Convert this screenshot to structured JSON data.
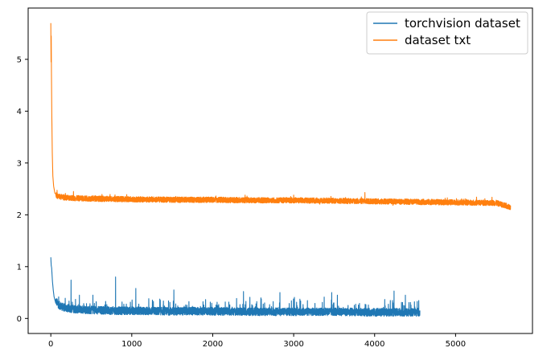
{
  "chart_data": {
    "type": "line",
    "title": "",
    "xlabel": "",
    "ylabel": "",
    "xlim": [
      -280,
      5950
    ],
    "ylim": [
      -0.29,
      5.99
    ],
    "x_ticks": [
      0,
      1000,
      2000,
      3000,
      4000,
      5000
    ],
    "y_ticks": [
      0,
      1,
      2,
      3,
      4,
      5
    ],
    "grid": false,
    "legend_position": "upper right",
    "series": [
      {
        "name": "torchvision dataset",
        "color": "#1f77b4",
        "n_points": 4560,
        "points": [
          [
            0,
            1.18
          ],
          [
            5,
            1.02
          ],
          [
            10,
            0.98
          ],
          [
            20,
            0.72
          ],
          [
            30,
            0.55
          ],
          [
            40,
            0.42
          ],
          [
            60,
            0.3
          ],
          [
            80,
            0.25
          ],
          [
            100,
            0.21
          ],
          [
            150,
            0.17
          ],
          [
            200,
            0.15
          ],
          [
            300,
            0.13
          ],
          [
            400,
            0.12
          ],
          [
            600,
            0.11
          ],
          [
            800,
            0.1
          ],
          [
            1000,
            0.1
          ],
          [
            1500,
            0.09
          ],
          [
            2000,
            0.09
          ],
          [
            2500,
            0.08
          ],
          [
            3000,
            0.08
          ],
          [
            3500,
            0.08
          ],
          [
            4000,
            0.07
          ],
          [
            4560,
            0.07
          ]
        ],
        "noise_amplitude": 0.07,
        "spikes": [
          [
            250,
            0.74
          ],
          [
            520,
            0.45
          ],
          [
            800,
            0.8
          ],
          [
            1050,
            0.58
          ],
          [
            1520,
            0.55
          ],
          [
            2380,
            0.52
          ],
          [
            2830,
            0.5
          ],
          [
            3470,
            0.5
          ],
          [
            3540,
            0.45
          ],
          [
            4240,
            0.53
          ],
          [
            4380,
            0.45
          ]
        ]
      },
      {
        "name": "dataset txt",
        "color": "#ff7f0e",
        "n_points": 5680,
        "points": [
          [
            0,
            5.7
          ],
          [
            3,
            4.95
          ],
          [
            5,
            5.45
          ],
          [
            8,
            4.7
          ],
          [
            12,
            3.95
          ],
          [
            18,
            3.2
          ],
          [
            25,
            2.75
          ],
          [
            35,
            2.55
          ],
          [
            50,
            2.42
          ],
          [
            80,
            2.36
          ],
          [
            150,
            2.34
          ],
          [
            300,
            2.32
          ],
          [
            600,
            2.31
          ],
          [
            1000,
            2.3
          ],
          [
            1500,
            2.29
          ],
          [
            2000,
            2.29
          ],
          [
            2500,
            2.28
          ],
          [
            3000,
            2.28
          ],
          [
            3500,
            2.27
          ],
          [
            4000,
            2.26
          ],
          [
            4500,
            2.25
          ],
          [
            5000,
            2.24
          ],
          [
            5500,
            2.23
          ],
          [
            5680,
            2.15
          ]
        ],
        "noise_amplitude": 0.045,
        "spikes": [
          [
            280,
            2.45
          ],
          [
            2400,
            2.38
          ],
          [
            3000,
            2.38
          ],
          [
            3880,
            2.43
          ],
          [
            5450,
            2.34
          ]
        ]
      }
    ]
  }
}
